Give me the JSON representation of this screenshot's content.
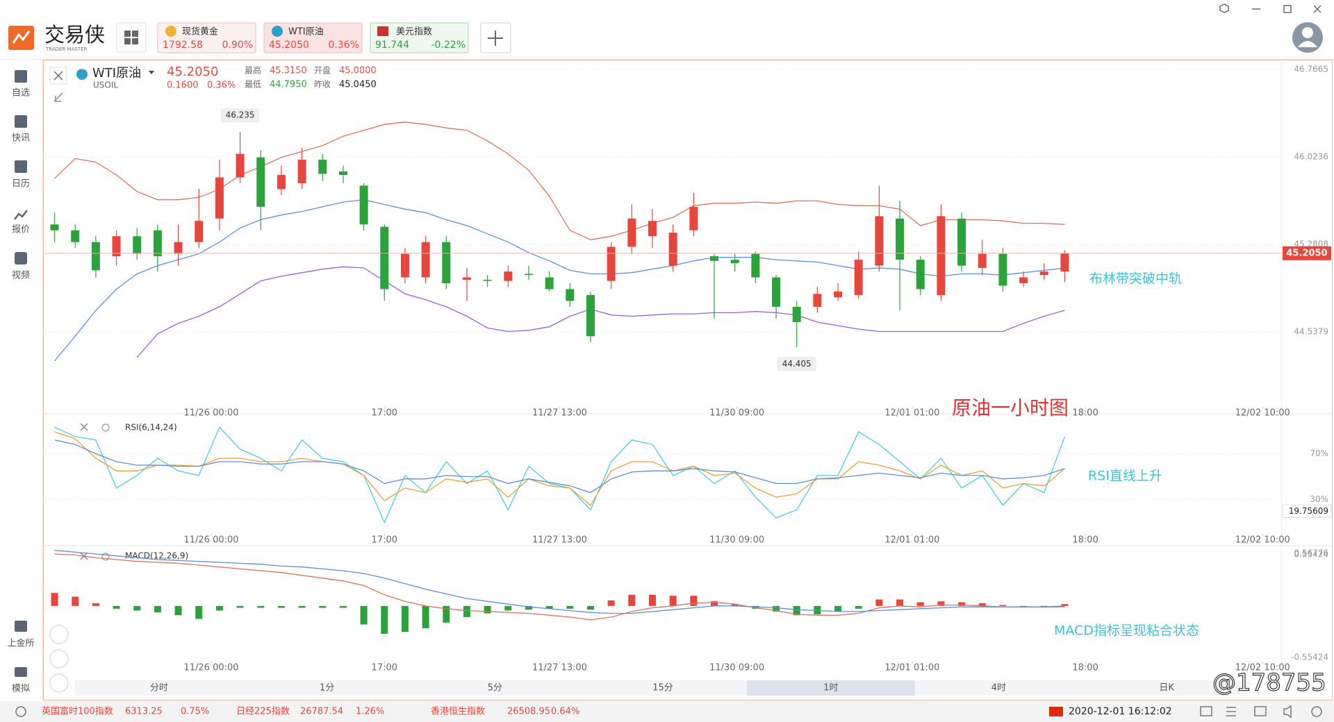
{
  "app": {
    "logo": "交易侠",
    "logo_sub": "TRADER MASTER",
    "tabs": [
      {
        "name": "现货黄金",
        "price": "1792.58",
        "change": "0.90%"
      },
      {
        "name": "WTI原油",
        "price": "45.2050",
        "change": "0.36%"
      },
      {
        "name": "美元指数",
        "price": "91.744",
        "change": "-0.22%"
      }
    ],
    "sidebar": [
      "自选",
      "快讯",
      "日历",
      "报价",
      "视频"
    ],
    "sidebar_bottom": [
      "上金所",
      "模拟"
    ]
  },
  "header": {
    "name": "WTI原油",
    "code": "USOIL",
    "price": "45.2050",
    "change": "0.1600",
    "change_pct": "0.36%",
    "high_label": "最高",
    "high": "45.3150",
    "open_label": "开盘",
    "open": "45.0800",
    "low_label": "最低",
    "low": "44.7950",
    "prev_label": "昨收",
    "prev": "45.0450"
  },
  "notes": {
    "title": "原油一小时图",
    "bollinger": "布林带突破中轨",
    "rsi": "RSI直线上升",
    "macd": "MACD指标呈现粘合状态"
  },
  "chart_data": [
    {
      "type": "candlestick",
      "open": [
        45.45,
        45.4,
        45.3,
        45.18,
        45.35,
        45.4,
        45.2,
        45.3,
        45.5,
        45.85,
        46.02,
        45.75,
        45.8,
        46.0,
        45.9,
        45.78,
        45.43,
        45.0,
        45.0,
        45.3,
        44.98,
        44.98,
        44.97,
        45.03,
        45.0,
        44.9,
        44.85,
        44.97,
        45.26,
        45.35,
        45.1,
        45.4,
        45.18,
        45.15,
        45.2,
        45.0,
        44.75,
        44.75,
        44.83,
        44.85,
        45.1,
        45.5,
        45.15,
        44.85,
        45.5,
        45.08,
        45.2,
        44.95,
        45.02,
        45.05
      ],
      "high": [
        45.55,
        45.45,
        45.35,
        45.4,
        45.42,
        45.45,
        45.45,
        45.75,
        46.0,
        46.235,
        46.08,
        45.95,
        46.1,
        46.05,
        45.95,
        45.8,
        45.45,
        45.25,
        45.35,
        45.35,
        45.08,
        45.02,
        45.1,
        45.1,
        45.05,
        44.95,
        44.88,
        45.3,
        45.62,
        45.58,
        45.45,
        45.72,
        45.2,
        45.2,
        45.22,
        45.02,
        44.8,
        44.92,
        44.95,
        45.22,
        45.78,
        45.65,
        45.18,
        45.62,
        45.55,
        45.32,
        45.25,
        45.05,
        45.12,
        45.23
      ],
      "low": [
        45.3,
        45.25,
        45.0,
        45.1,
        45.15,
        45.05,
        45.1,
        45.25,
        45.4,
        45.8,
        45.4,
        45.7,
        45.75,
        45.82,
        45.8,
        45.4,
        44.8,
        44.95,
        44.95,
        44.9,
        44.8,
        44.92,
        44.92,
        44.98,
        44.88,
        44.75,
        44.45,
        44.9,
        45.2,
        45.25,
        45.05,
        45.35,
        44.65,
        45.05,
        44.95,
        44.65,
        44.405,
        44.7,
        44.8,
        44.82,
        45.05,
        44.72,
        44.85,
        44.8,
        45.05,
        45.02,
        44.88,
        44.92,
        44.98,
        44.96
      ],
      "close": [
        45.4,
        45.3,
        45.06,
        45.35,
        45.2,
        45.18,
        45.3,
        45.48,
        45.85,
        46.05,
        45.6,
        45.87,
        46.0,
        45.88,
        45.87,
        45.45,
        44.9,
        45.2,
        45.3,
        44.95,
        45.0,
        44.97,
        45.05,
        45.02,
        44.9,
        44.8,
        44.5,
        45.26,
        45.5,
        45.48,
        45.38,
        45.6,
        45.14,
        45.12,
        45.0,
        44.75,
        44.62,
        44.86,
        44.88,
        45.15,
        45.52,
        45.15,
        44.9,
        45.52,
        45.1,
        45.2,
        44.93,
        45.0,
        45.05,
        45.205
      ],
      "up_color": "#e8453c",
      "down_color": "#2aa43a",
      "lines": [
        {
          "color": "#e0705a",
          "values": [
            45.84,
            46.01,
            45.98,
            45.87,
            45.73,
            45.66,
            45.66,
            45.68,
            45.75,
            45.87,
            45.94,
            46.02,
            46.07,
            46.12,
            46.2,
            46.25,
            46.3,
            46.32,
            46.3,
            46.27,
            46.25,
            46.16,
            46.05,
            45.91,
            45.69,
            45.4,
            45.32,
            45.35,
            45.4,
            45.46,
            45.51,
            45.61,
            45.63,
            45.63,
            45.64,
            45.63,
            45.65,
            45.65,
            45.62,
            45.61,
            45.61,
            45.58,
            45.44,
            45.49,
            45.49,
            45.49,
            45.48,
            45.46,
            45.46,
            45.45
          ]
        },
        {
          "color": "#5b8fd9",
          "values": [
            44.29,
            44.5,
            44.72,
            44.9,
            45.03,
            45.1,
            45.15,
            45.2,
            45.3,
            45.42,
            45.49,
            45.53,
            45.56,
            45.6,
            45.64,
            45.66,
            45.62,
            45.58,
            45.55,
            45.49,
            45.44,
            45.37,
            45.3,
            45.21,
            45.14,
            45.06,
            45.03,
            45.03,
            45.04,
            45.07,
            45.1,
            45.14,
            45.17,
            45.17,
            45.17,
            45.15,
            45.14,
            45.13,
            45.1,
            45.07,
            45.08,
            45.07,
            45.03,
            45.01,
            45.03,
            45.03,
            45.02,
            45.04,
            45.06,
            45.08
          ]
        },
        {
          "color": "#9b5fd6",
          "values": [
            null,
            null,
            null,
            null,
            44.32,
            44.52,
            44.61,
            44.67,
            44.75,
            44.86,
            44.97,
            45.01,
            45.04,
            45.07,
            45.09,
            45.08,
            44.97,
            44.86,
            44.81,
            44.75,
            44.67,
            44.57,
            44.54,
            44.55,
            44.58,
            44.67,
            44.73,
            44.68,
            44.67,
            44.68,
            44.69,
            44.69,
            44.7,
            44.7,
            44.71,
            44.7,
            44.68,
            44.62,
            44.59,
            44.56,
            44.54,
            44.54,
            44.54,
            44.54,
            44.54,
            44.54,
            44.54,
            44.61,
            44.67,
            44.72
          ]
        }
      ],
      "ylim": [
        43.9,
        46.85
      ],
      "yticks": [
        46.7665,
        46.0236,
        45.2808,
        44.5379
      ],
      "grid": true,
      "xlim": [
        -0.5,
        59.5
      ],
      "xticks": [
        {
          "value": 7.6,
          "label": "11/26 00:00"
        },
        {
          "value": 16.0,
          "label": "17:00"
        },
        {
          "value": 24.5,
          "label": "11/27 13:00"
        },
        {
          "value": 33.1,
          "label": "11/30 09:00"
        },
        {
          "value": 41.6,
          "label": "12/01 01:00"
        },
        {
          "value": 50.0,
          "label": "18:00"
        },
        {
          "value": 58.6,
          "label": "12/02 10:00"
        }
      ],
      "last_price": {
        "value": 45.205,
        "label": "45.2050"
      },
      "annotations": [
        {
          "x": 9,
          "value": 46.235
        },
        {
          "x": 36,
          "value": 44.405
        }
      ]
    },
    {
      "type": "line",
      "title": "RSI(6,14,24)",
      "series": [
        {
          "color": "#44d0e0",
          "values": [
            93,
            85,
            82,
            40,
            51,
            66,
            55,
            51,
            93,
            74,
            66,
            55,
            82,
            66,
            63,
            51,
            10,
            51,
            36,
            63,
            44,
            55,
            21,
            59,
            44,
            40,
            21,
            63,
            82,
            78,
            51,
            59,
            44,
            55,
            32,
            14,
            21,
            51,
            51,
            89,
            78,
            63,
            48,
            66,
            40,
            51,
            25,
            44,
            36,
            85
          ]
        },
        {
          "color": "#f0a030",
          "values": [
            89,
            83,
            66,
            55,
            55,
            60,
            60,
            59,
            66,
            66,
            63,
            63,
            66,
            63,
            61,
            51,
            29,
            40,
            36,
            48,
            45,
            48,
            32,
            48,
            42,
            40,
            25,
            55,
            63,
            63,
            55,
            59,
            51,
            53,
            40,
            32,
            35,
            48,
            48,
            63,
            60,
            55,
            48,
            60,
            51,
            55,
            40,
            44,
            42,
            57
          ]
        },
        {
          "color": "#5b8fd9",
          "values": [
            82,
            78,
            70,
            63,
            60,
            60,
            59,
            59,
            63,
            63,
            61,
            61,
            63,
            63,
            61,
            55,
            44,
            48,
            48,
            51,
            50,
            50,
            44,
            48,
            45,
            42,
            36,
            48,
            54,
            55,
            55,
            57,
            55,
            54,
            49,
            44,
            44,
            48,
            49,
            51,
            53,
            51,
            49,
            53,
            51,
            51,
            48,
            49,
            51,
            57
          ]
        }
      ],
      "ylim": [
        0,
        100
      ],
      "yticks": [
        {
          "value": 70,
          "label": "70%"
        },
        {
          "value": 30,
          "label": "30%"
        }
      ],
      "grid": true,
      "current": 19.75609
    },
    {
      "type": "macd",
      "title": "MACD(12,26,9)",
      "histogram": [
        0.14,
        0.1,
        0.03,
        -0.03,
        -0.05,
        -0.07,
        -0.1,
        -0.14,
        -0.05,
        -0.02,
        -0.02,
        -0.02,
        -0.02,
        -0.02,
        -0.02,
        -0.2,
        -0.3,
        -0.28,
        -0.24,
        -0.18,
        -0.12,
        -0.08,
        -0.05,
        -0.04,
        -0.03,
        -0.03,
        -0.04,
        0.06,
        0.12,
        0.12,
        0.11,
        0.11,
        0.05,
        0.02,
        -0.03,
        -0.06,
        -0.1,
        -0.09,
        -0.06,
        -0.03,
        0.07,
        0.07,
        0.04,
        0.05,
        0.04,
        0.03,
        0.01,
        -0.01,
        -0.01,
        0.02
      ],
      "up_color": "#e8453c",
      "down_color": "#2aa43a",
      "series": [
        {
          "color": "#e0705a",
          "values": [
            0.56,
            0.55,
            0.52,
            0.5,
            0.48,
            0.47,
            0.46,
            0.44,
            0.42,
            0.4,
            0.38,
            0.36,
            0.33,
            0.3,
            0.27,
            0.22,
            0.12,
            0.05,
            0.0,
            -0.03,
            -0.05,
            -0.06,
            -0.07,
            -0.08,
            -0.1,
            -0.12,
            -0.15,
            -0.12,
            -0.06,
            -0.02,
            0.0,
            0.03,
            0.04,
            0.02,
            -0.02,
            -0.05,
            -0.09,
            -0.1,
            -0.1,
            -0.08,
            -0.02,
            0.0,
            -0.01,
            0.01,
            0.01,
            0.0,
            -0.01,
            -0.01,
            -0.01,
            0.0
          ]
        },
        {
          "color": "#5b8fd9",
          "values": [
            0.6,
            0.58,
            0.56,
            0.54,
            0.52,
            0.5,
            0.49,
            0.48,
            0.47,
            0.46,
            0.45,
            0.43,
            0.42,
            0.4,
            0.38,
            0.35,
            0.3,
            0.24,
            0.18,
            0.13,
            0.08,
            0.05,
            0.02,
            -0.01,
            -0.03,
            -0.05,
            -0.07,
            -0.08,
            -0.08,
            -0.06,
            -0.04,
            -0.02,
            0.0,
            0.0,
            -0.01,
            -0.02,
            -0.04,
            -0.05,
            -0.06,
            -0.06,
            -0.05,
            -0.04,
            -0.03,
            -0.02,
            -0.01,
            -0.01,
            -0.01,
            -0.01,
            -0.01,
            -0.01
          ]
        }
      ],
      "ylim": [
        -0.6,
        0.62
      ],
      "yticks": [
        0.56776,
        0.55424,
        -0.55424
      ],
      "grid": false
    }
  ],
  "timeframes": [
    "分时",
    "1分",
    "5分",
    "15分",
    "1时",
    "4时",
    "日K"
  ],
  "active_timeframe": 4,
  "ticker": [
    {
      "name": "英国富时100指数",
      "value": "6313.25",
      "change": "0.75%"
    },
    {
      "name": "日经225指数",
      "value": "26787.54",
      "change": "1.26%"
    },
    {
      "name": "香港恒生指数",
      "value": "26508.95",
      "change": "0.64%"
    }
  ],
  "datetime": "2020-12-01 16:12:02",
  "watermark": "@178755"
}
